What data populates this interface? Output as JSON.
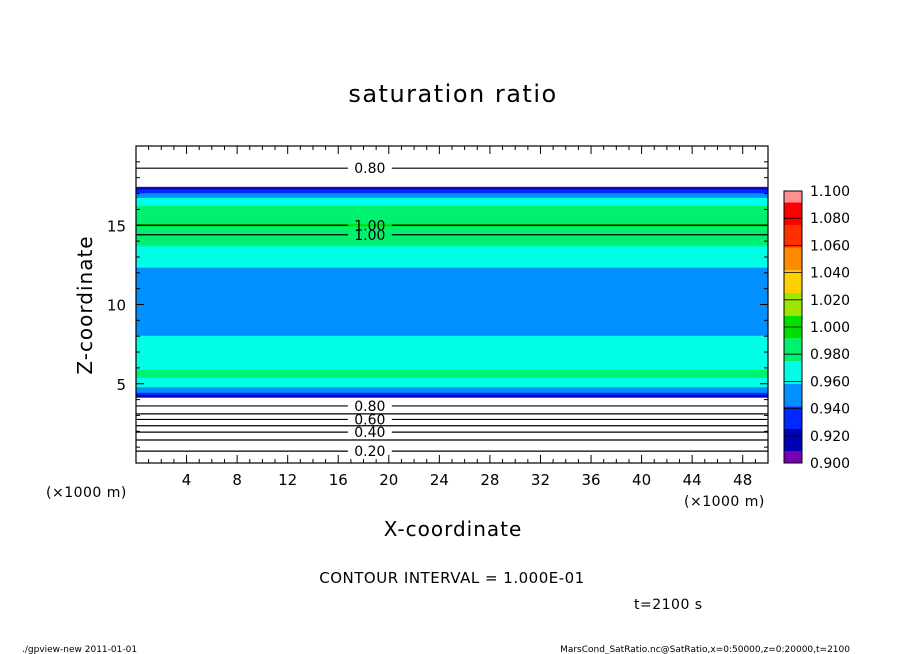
{
  "chart_data": {
    "type": "heatmap",
    "title": "saturation ratio",
    "xlabel": "X-coordinate",
    "ylabel": "Z-coordinate",
    "x_unit": "(×1000 m)",
    "z_unit": "(×1000 m)",
    "xlim": [
      0,
      50
    ],
    "ylim": [
      0,
      20
    ],
    "x_ticks": [
      "4",
      "8",
      "12",
      "16",
      "20",
      "24",
      "28",
      "32",
      "36",
      "40",
      "44",
      "48"
    ],
    "y_ticks": [
      "5",
      "10",
      "15"
    ],
    "colorbar": {
      "labels": [
        "0.900",
        "0.920",
        "0.940",
        "0.960",
        "0.980",
        "1.000",
        "1.020",
        "1.040",
        "1.060",
        "1.080",
        "1.100"
      ],
      "colors": [
        "#7800b4",
        "#0000b4",
        "#0028ff",
        "#0090ff",
        "#00ffe6",
        "#00f070",
        "#00e000",
        "#a0e600",
        "#ffd000",
        "#ff8c00",
        "#ff3000",
        "#ff0000",
        "#ff9090"
      ]
    },
    "field_profile": [
      {
        "z": 0.5,
        "value": 0.15
      },
      {
        "z": 3.9,
        "value": 0.85
      },
      {
        "z": 4.15,
        "value": 0.9
      },
      {
        "z": 4.5,
        "value": 0.95
      },
      {
        "z": 5.5,
        "value": 0.985
      },
      {
        "z": 7.0,
        "value": 0.965
      },
      {
        "z": 9.0,
        "value": 0.955
      },
      {
        "z": 12.0,
        "value": 0.955
      },
      {
        "z": 14.0,
        "value": 0.985
      },
      {
        "z": 15.0,
        "value": 1.001
      },
      {
        "z": 16.5,
        "value": 0.975
      },
      {
        "z": 17.2,
        "value": 0.93
      },
      {
        "z": 17.5,
        "value": 0.88
      },
      {
        "z": 19.5,
        "value": 0.75
      }
    ],
    "contours": [
      {
        "level": "0.80",
        "z": 18.6,
        "label": "0.80"
      },
      {
        "level": "1.00",
        "z": 15.0,
        "label": "1.00"
      },
      {
        "level": "1.00",
        "z": 14.4,
        "label": "1.00"
      },
      {
        "level": "0.80",
        "z": 3.6,
        "label": "0.80"
      },
      {
        "level": "0.70",
        "z": 3.1,
        "label": ""
      },
      {
        "level": "0.60",
        "z": 2.75,
        "label": "0.60"
      },
      {
        "level": "0.50",
        "z": 2.35,
        "label": ""
      },
      {
        "level": "0.40",
        "z": 1.95,
        "label": "0.40"
      },
      {
        "level": "0.30",
        "z": 1.45,
        "label": ""
      },
      {
        "level": "0.20",
        "z": 0.75,
        "label": "0.20"
      }
    ],
    "contour_interval": "CONTOUR INTERVAL = 1.000E-01",
    "time_label": "t=2100 s"
  },
  "footer": {
    "left": "./gpview-new   2011-01-01",
    "right": "MarsCond_SatRatio.nc@SatRatio,x=0:50000,z=0:20000,t=2100"
  }
}
